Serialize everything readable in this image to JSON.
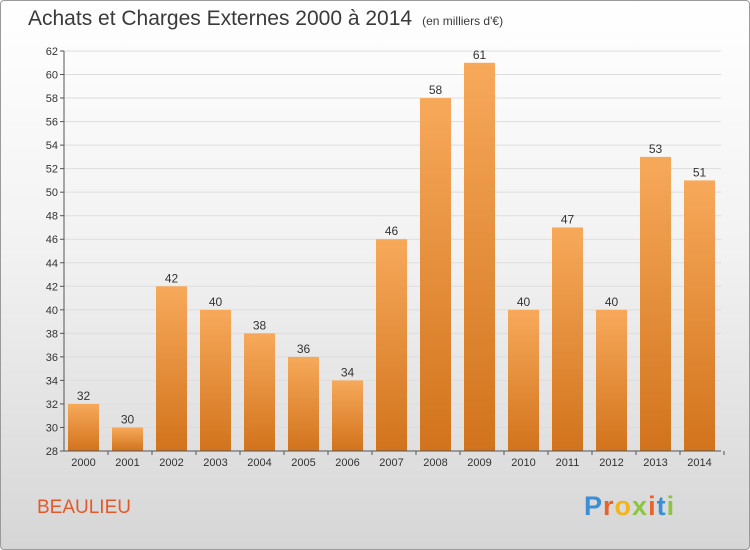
{
  "header": {
    "title": "Achats et Charges Externes 2000 à 2014",
    "unit": "(en milliers d'€)"
  },
  "footer": {
    "city": "BEAULIEU",
    "logo": {
      "text": "Proxiti",
      "letter_colors": [
        "#3a8fd6",
        "#e8632a",
        "#f2b51c",
        "#8cc63f",
        "#e8632a",
        "#3a8fd6",
        "#8cc63f"
      ]
    }
  },
  "colors": {
    "bar_top": "#f7a95a",
    "bar_bottom": "#d2731c",
    "grid": "#dddddd",
    "axis": "#555555",
    "text": "#333333"
  },
  "chart_data": {
    "type": "bar",
    "categories": [
      "2000",
      "2001",
      "2002",
      "2003",
      "2004",
      "2005",
      "2006",
      "2007",
      "2008",
      "2009",
      "2010",
      "2011",
      "2012",
      "2013",
      "2014"
    ],
    "values": [
      32,
      30,
      42,
      40,
      38,
      36,
      34,
      46,
      58,
      61,
      40,
      47,
      40,
      53,
      51
    ],
    "data_labels": [
      "32",
      "30",
      "42",
      "40",
      "38",
      "36",
      "34",
      "46",
      "58",
      "61",
      "40",
      "47",
      "40",
      "53",
      "51"
    ],
    "title": "Achats et Charges Externes 2000 à 2014",
    "subtitle": "(en milliers d'€)",
    "xlabel": "",
    "ylabel": "",
    "ylim": [
      28,
      62
    ],
    "yticks": [
      28,
      30,
      32,
      34,
      36,
      38,
      40,
      42,
      44,
      46,
      48,
      50,
      52,
      54,
      56,
      58,
      60,
      62
    ],
    "grid": true,
    "legend": "none"
  }
}
